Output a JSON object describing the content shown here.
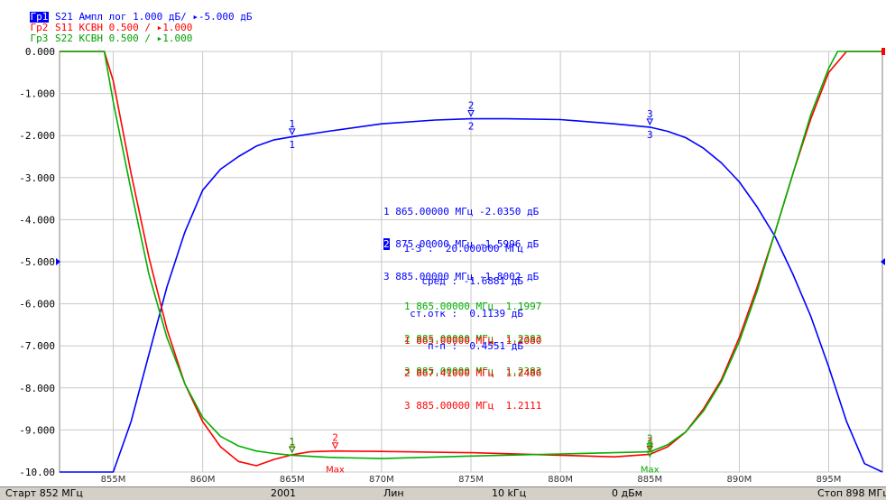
{
  "header": {
    "lines": [
      {
        "tag": "Гр1",
        "text": " S21 Ампл лог 1.000 дБ/ ▸-5.000 дБ",
        "color": "#0000ff",
        "active": true
      },
      {
        "tag": "Гр2",
        "text": " S11 КСВН 0.500 / ▸1.000",
        "color": "#ff0000",
        "active": false
      },
      {
        "tag": "Гр3",
        "text": " S22 КСВН 0.500 / ▸1.000",
        "color": "#00a000",
        "active": false
      }
    ]
  },
  "colors": {
    "s21": "#0000ff",
    "s11": "#ff0000",
    "s22": "#00b000",
    "grid": "#c8c8c8"
  },
  "chart_data": {
    "type": "line",
    "x_unit": "MHz",
    "xlim": [
      852,
      898
    ],
    "ylim": [
      -10,
      0
    ],
    "grid": true,
    "y_ticks": [
      "0.000",
      "-1.000",
      "-2.000",
      "-3.000",
      "-4.000",
      "-5.000",
      "-6.000",
      "-7.000",
      "-8.000",
      "-9.000",
      "-10.00"
    ],
    "x_ticks": [
      {
        "value": 855,
        "label": "855M"
      },
      {
        "value": 860,
        "label": "860M"
      },
      {
        "value": 865,
        "label": "865M"
      },
      {
        "value": 870,
        "label": "870M"
      },
      {
        "value": 875,
        "label": "875M"
      },
      {
        "value": 880,
        "label": "880M"
      },
      {
        "value": 885,
        "label": "885M"
      },
      {
        "value": 890,
        "label": "890M"
      },
      {
        "value": 895,
        "label": "895M"
      }
    ],
    "reference_level": -5.0,
    "series": [
      {
        "key": "s21",
        "name": "S21",
        "x": [
          852,
          855,
          856,
          857,
          858,
          859,
          860,
          861,
          862,
          863,
          864,
          865,
          867,
          870,
          873,
          875,
          877,
          880,
          883,
          885,
          886,
          887,
          888,
          889,
          890,
          891,
          892,
          893,
          894,
          895,
          896,
          897,
          898
        ],
        "y": [
          -10,
          -10,
          -8.8,
          -7.2,
          -5.6,
          -4.3,
          -3.3,
          -2.8,
          -2.5,
          -2.25,
          -2.1,
          -2.03,
          -1.9,
          -1.72,
          -1.63,
          -1.6,
          -1.6,
          -1.62,
          -1.72,
          -1.8,
          -1.9,
          -2.05,
          -2.3,
          -2.65,
          -3.1,
          -3.7,
          -4.4,
          -5.3,
          -6.3,
          -7.5,
          -8.8,
          -9.8,
          -10
        ]
      },
      {
        "key": "s11",
        "name": "S11",
        "x": [
          852,
          854.5,
          855,
          856,
          857,
          858,
          859,
          860,
          861,
          862,
          863,
          864,
          865,
          866,
          867.4,
          870,
          875,
          880,
          883,
          885,
          886,
          887,
          888,
          889,
          890,
          891,
          892,
          893,
          894,
          895,
          896,
          896.5,
          898
        ],
        "y": [
          0,
          0,
          -0.7,
          -2.9,
          -4.9,
          -6.6,
          -7.9,
          -8.8,
          -9.4,
          -9.75,
          -9.85,
          -9.7,
          -9.59,
          -9.52,
          -9.5,
          -9.51,
          -9.54,
          -9.6,
          -9.64,
          -9.58,
          -9.4,
          -9.05,
          -8.5,
          -7.8,
          -6.8,
          -5.6,
          -4.3,
          -2.9,
          -1.6,
          -0.5,
          0,
          0,
          0
        ]
      },
      {
        "key": "s22",
        "name": "S22",
        "x": [
          852,
          854.5,
          855,
          856,
          857,
          858,
          859,
          860,
          861,
          862,
          863,
          864,
          865,
          867,
          870,
          875,
          880,
          885,
          886,
          887,
          888,
          889,
          890,
          891,
          892,
          893,
          894,
          895,
          895.5,
          898
        ],
        "y": [
          0,
          0,
          -1.2,
          -3.3,
          -5.3,
          -6.8,
          -7.9,
          -8.7,
          -9.15,
          -9.38,
          -9.5,
          -9.56,
          -9.6,
          -9.65,
          -9.68,
          -9.62,
          -9.57,
          -9.52,
          -9.35,
          -9.05,
          -8.55,
          -7.85,
          -6.9,
          -5.7,
          -4.3,
          -2.9,
          -1.5,
          -0.4,
          0,
          0
        ]
      }
    ],
    "markers": [
      {
        "series": "s21",
        "label": "1",
        "x": 865.0,
        "y": -2.035
      },
      {
        "series": "s21",
        "label": "2",
        "x": 875.0,
        "y": -1.5996
      },
      {
        "series": "s21",
        "label": "3",
        "x": 885.0,
        "y": -1.8002
      },
      {
        "series": "s11",
        "label": "1",
        "x": 865.0,
        "y": -9.59
      },
      {
        "series": "s11",
        "label": "2",
        "x": 867.41,
        "y": -9.5
      },
      {
        "series": "s11",
        "label": "Max",
        "x": 867.41,
        "y": -9.95
      },
      {
        "series": "s11",
        "label": "3",
        "x": 885.0,
        "y": -9.58
      },
      {
        "series": "s22",
        "label": "1",
        "x": 865.0,
        "y": -9.6
      },
      {
        "series": "s22",
        "label": "2",
        "x": 885.0,
        "y": -9.52
      },
      {
        "series": "s22",
        "label": "3",
        "x": 885.0,
        "y": -9.7
      },
      {
        "series": "s22",
        "label": "Max",
        "x": 885.0,
        "y": -9.95
      }
    ]
  },
  "readouts": {
    "s21": {
      "markers": [
        {
          "id": "1",
          "text": " 865.00000 МГц -2.0350 дБ",
          "active": false
        },
        {
          "id": "2",
          "text": " 875.00000 МГц -1.5996 дБ",
          "active": true
        },
        {
          "id": "3",
          "text": " 885.00000 МГц -1.8002 дБ",
          "active": false
        }
      ],
      "stats": [
        "1-3 :  20.000000 МГц",
        "сред : -1.6881 дБ",
        "ст.отк :  0.1139 дБ",
        "п-п :  0.4551 дБ"
      ]
    },
    "s22": [
      "1 865.00000 МГц  1.1997",
      "2 885.00000 МГц  1.2383",
      "3 885.00000 МГц  1.2383"
    ],
    "s11": [
      "1 865.00000 МГц  1.2080",
      "2 867.41000 МГц  1.2486",
      "3 885.00000 МГц  1.2111"
    ]
  },
  "statusbar": {
    "start": "Старт 852 МГц",
    "points": "2001",
    "sweep_type": "Лин",
    "ifbw": "10 kГц",
    "power": "0 дБм",
    "stop": "Стоп 898 МГц"
  }
}
